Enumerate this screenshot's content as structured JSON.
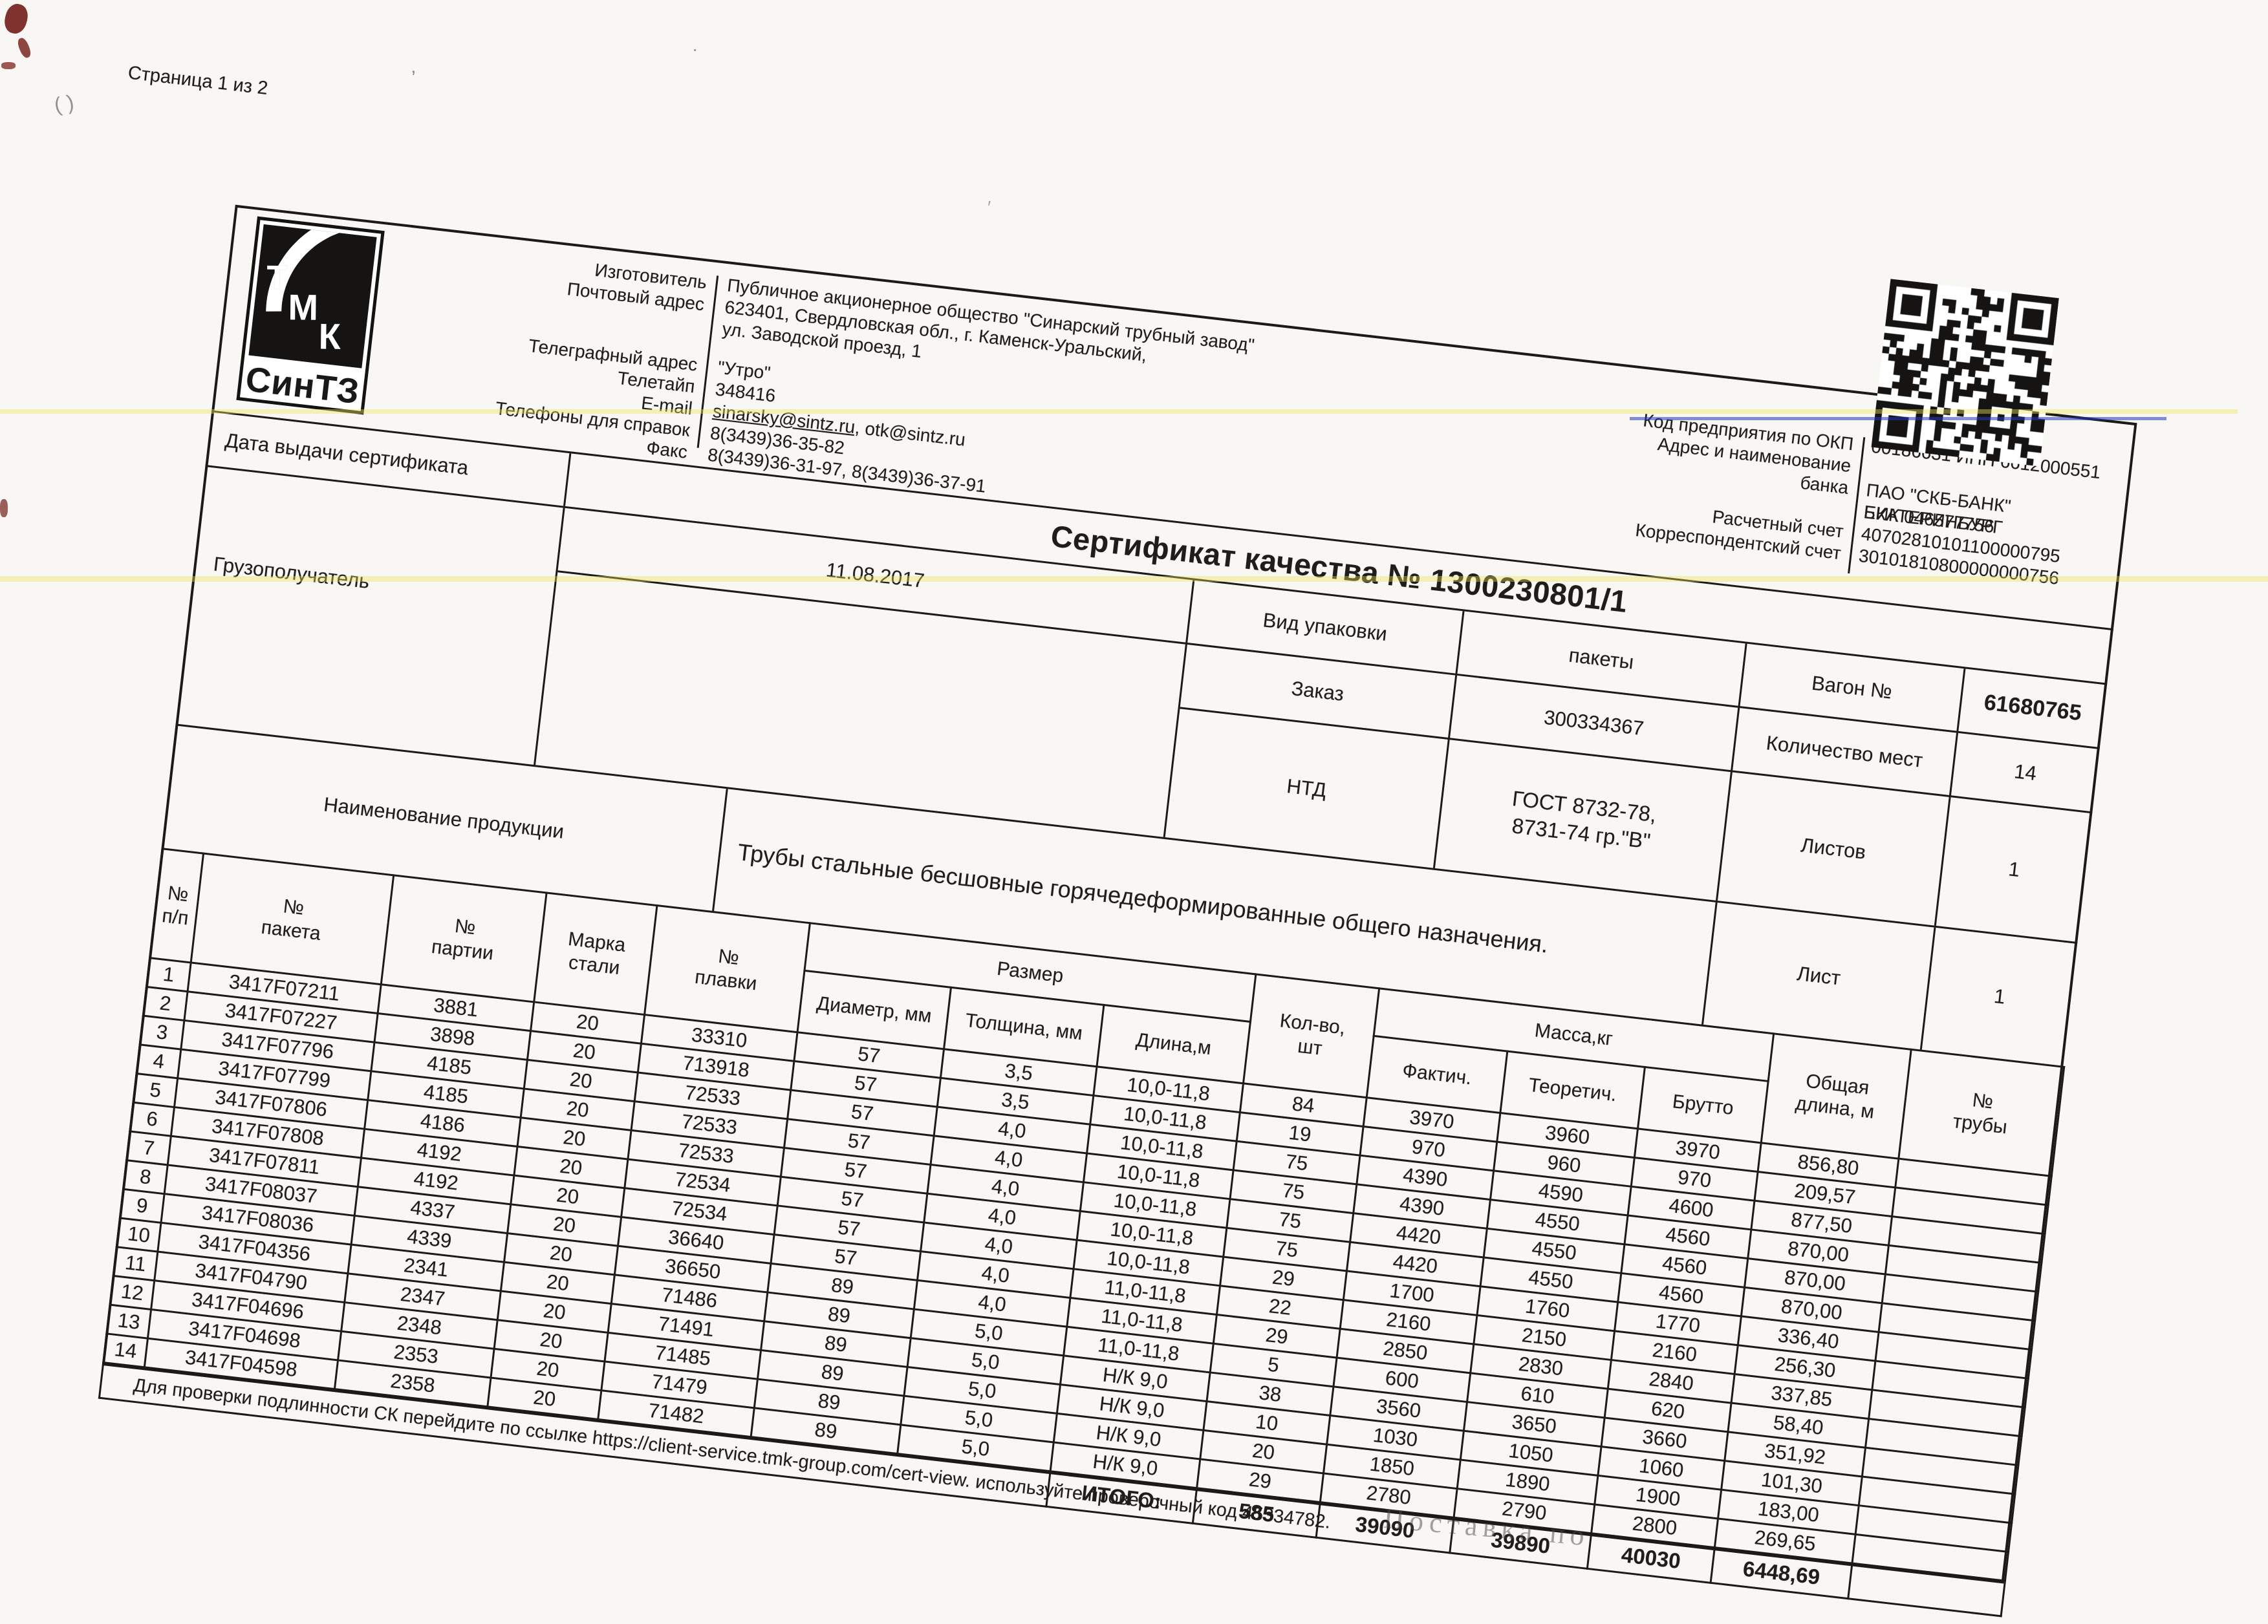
{
  "page": {
    "label": "Страница 1 из 2"
  },
  "logo": {
    "t1": "Т",
    "t2": "М",
    "t3": "К",
    "sintz": "СинТЗ"
  },
  "manufacturer": {
    "rows": [
      {
        "label": "Изготовитель",
        "value": "Публичное акционерное общество \"Синарский трубный завод\""
      },
      {
        "label": "Почтовый адрес",
        "value": "623401, Свердловская обл., г. Каменск-Уральский,"
      },
      {
        "label": "",
        "value": "ул. Заводской проезд, 1"
      },
      {
        "label": "Телеграфный адрес",
        "value": "\"Утро\""
      },
      {
        "label": "Телетайп",
        "value": "348416"
      },
      {
        "label": "Телефоны для справок",
        "value": "8(3439)36-35-82"
      },
      {
        "label": "Факс",
        "value": "8(3439)36-31-97, 8(3439)36-37-91"
      }
    ],
    "email_label": "E-mail",
    "email1": "sinarsky@sintz.ru",
    "email2": ", otk@sintz.ru"
  },
  "bank": {
    "rows": [
      {
        "label": "Код предприятия по ОКП",
        "value": "00186631 ИНН 6612000551"
      },
      {
        "label": "Адрес и наименование",
        "value": ""
      },
      {
        "label": "банка",
        "value": "ПАО \"СКБ-БАНК\" ЕКАТЕРИНБУРГ"
      },
      {
        "label": "",
        "value": "БИК 046577756"
      },
      {
        "label": "Расчетный счет",
        "value": "40702810101100000795"
      },
      {
        "label": "Корреспондентский счет",
        "value": "30101810800000000756"
      }
    ]
  },
  "certificate": {
    "date_label": "Дата выдачи сертификата",
    "title": "Сертификат качества №  1300230801/1",
    "date": "11.08.2017",
    "consignee_label": "Грузополучатель"
  },
  "packing": {
    "label": "Вид упаковки",
    "value": "пакеты",
    "order_label": "Заказ",
    "order_value": "300334367",
    "ntd_label": "НТД",
    "ntd_value": "ГОСТ 8732-78,\n8731-74 гр.\"В\""
  },
  "wagon": {
    "label": "Вагон  №",
    "value": "61680765",
    "places_label": "Количество мест",
    "places_value": "14",
    "sheets_label": "Листов",
    "sheets_value": "1",
    "sheet_label": "Лист",
    "sheet_value": "1"
  },
  "product": {
    "label": "Наименование продукции",
    "value": "Трубы стальные бесшовные горячедеформированные общего назначения."
  },
  "table": {
    "headers": {
      "n": "№\nп/п",
      "packet": "№\nпакета",
      "batch": "№\nпартии",
      "steel": "Марка\nстали",
      "heat": "№\nплавки",
      "size_group": "Размер",
      "diameter": "Диаметр, мм",
      "thickness": "Толщина, мм",
      "length": "Длина,м",
      "qty": "Кол-во,\nшт",
      "mass_group": "Масса,кг",
      "fact": "Фактич.",
      "theor": "Теоретич.",
      "gross": "Брутто",
      "total_len": "Общая\nдлина, м",
      "pipe_no": "№\nтрубы"
    },
    "rows": [
      [
        "1",
        "3417F07211",
        "3881",
        "20",
        "33310",
        "57",
        "3,5",
        "10,0-11,8",
        "84",
        "3970",
        "3960",
        "3970",
        "856,80",
        ""
      ],
      [
        "2",
        "3417F07227",
        "3898",
        "20",
        "713918",
        "57",
        "3,5",
        "10,0-11,8",
        "19",
        "970",
        "960",
        "970",
        "209,57",
        ""
      ],
      [
        "3",
        "3417F07796",
        "4185",
        "20",
        "72533",
        "57",
        "4,0",
        "10,0-11,8",
        "75",
        "4390",
        "4590",
        "4600",
        "877,50",
        ""
      ],
      [
        "4",
        "3417F07799",
        "4185",
        "20",
        "72533",
        "57",
        "4,0",
        "10,0-11,8",
        "75",
        "4390",
        "4550",
        "4560",
        "870,00",
        ""
      ],
      [
        "5",
        "3417F07806",
        "4186",
        "20",
        "72533",
        "57",
        "4,0",
        "10,0-11,8",
        "75",
        "4420",
        "4550",
        "4560",
        "870,00",
        ""
      ],
      [
        "6",
        "3417F07808",
        "4192",
        "20",
        "72534",
        "57",
        "4,0",
        "10,0-11,8",
        "75",
        "4420",
        "4550",
        "4560",
        "870,00",
        ""
      ],
      [
        "7",
        "3417F07811",
        "4192",
        "20",
        "72534",
        "57",
        "4,0",
        "10,0-11,8",
        "29",
        "1700",
        "1760",
        "1770",
        "336,40",
        ""
      ],
      [
        "8",
        "3417F08037",
        "4337",
        "20",
        "36640",
        "57",
        "4,0",
        "11,0-11,8",
        "22",
        "2160",
        "2150",
        "2160",
        "256,30",
        ""
      ],
      [
        "9",
        "3417F08036",
        "4339",
        "20",
        "36650",
        "89",
        "4,0",
        "11,0-11,8",
        "29",
        "2850",
        "2830",
        "2840",
        "337,85",
        ""
      ],
      [
        "10",
        "3417F04356",
        "2341",
        "20",
        "71486",
        "89",
        "5,0",
        "11,0-11,8",
        "5",
        "600",
        "610",
        "620",
        "58,40",
        ""
      ],
      [
        "11",
        "3417F04790",
        "2347",
        "20",
        "71491",
        "89",
        "5,0",
        "Н/К 9,0",
        "38",
        "3560",
        "3650",
        "3660",
        "351,92",
        ""
      ],
      [
        "12",
        "3417F04696",
        "2348",
        "20",
        "71485",
        "89",
        "5,0",
        "Н/К 9,0",
        "10",
        "1030",
        "1050",
        "1060",
        "101,30",
        ""
      ],
      [
        "13",
        "3417F04698",
        "2353",
        "20",
        "71479",
        "89",
        "5,0",
        "Н/К 9,0",
        "20",
        "1850",
        "1890",
        "1900",
        "183,00",
        ""
      ],
      [
        "14",
        "3417F04598",
        "2358",
        "20",
        "71482",
        "89",
        "5,0",
        "Н/К 9,0",
        "29",
        "2780",
        "2790",
        "2800",
        "269,65",
        ""
      ]
    ],
    "totals": {
      "label": "ИТОГО:",
      "qty": "585",
      "fact": "39090",
      "theor": "39890",
      "gross": "40030",
      "total_len": "6448,69"
    }
  },
  "footer": {
    "note": "Для проверки подлинности СК перейдите по ссылке https://client-service.tmk-group.com/cert-view. используйте проверочный код  45334782."
  },
  "stamp": {
    "text": "Поставка по"
  }
}
